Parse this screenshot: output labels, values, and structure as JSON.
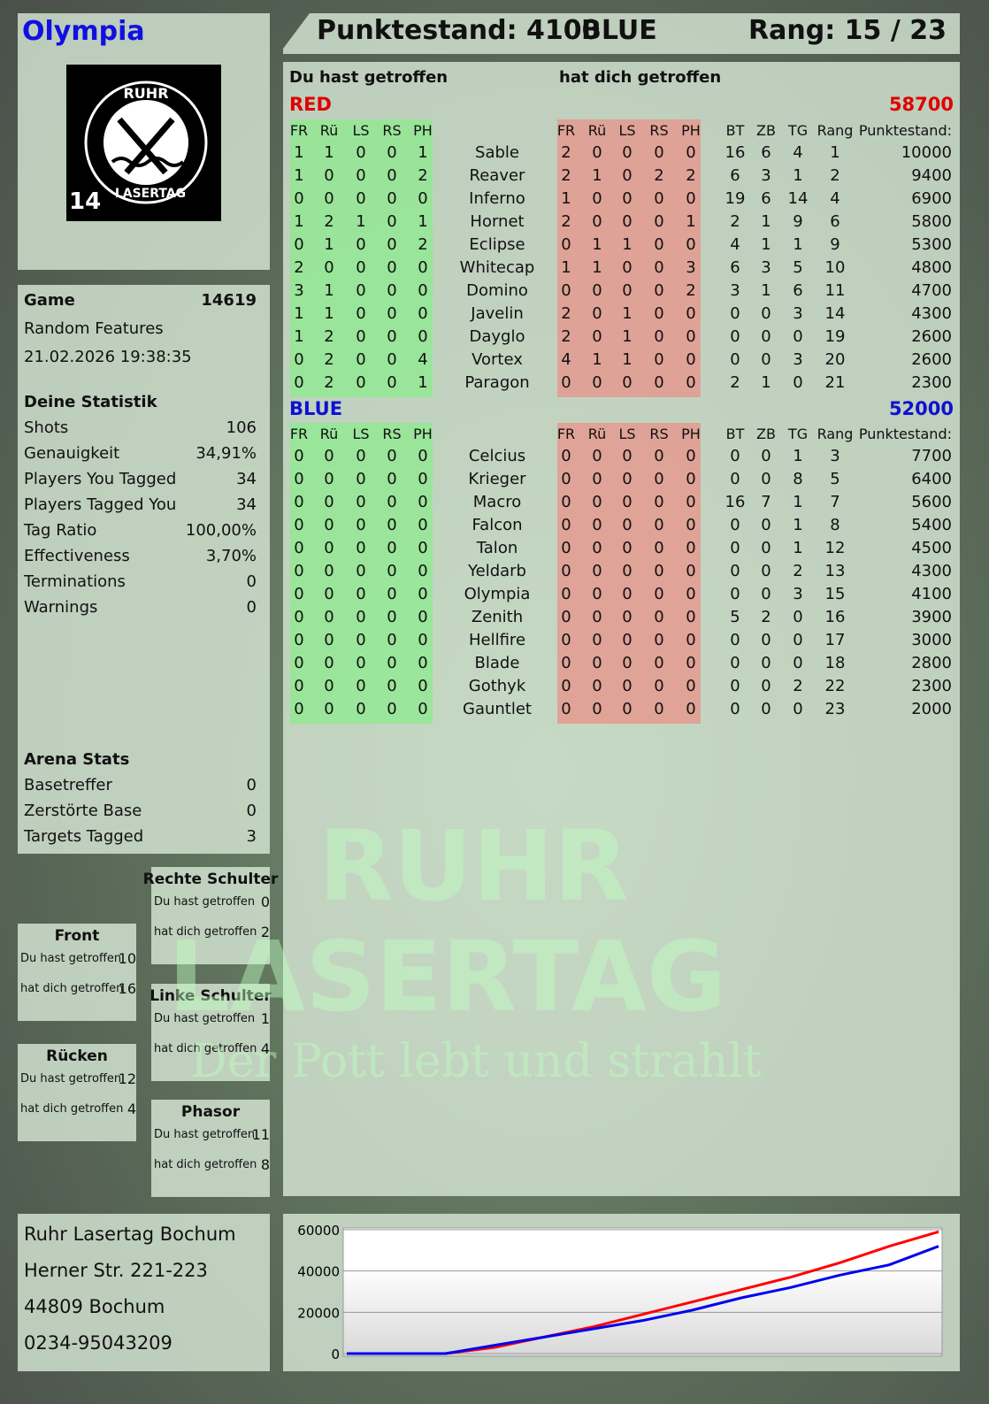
{
  "player": {
    "name": "Olympia",
    "badge_number": "14",
    "logo_text": "RUHR LASERTAG"
  },
  "header": {
    "score": "Punktestand: 4100",
    "team": "BLUE",
    "rank": "Rang: 15 / 23"
  },
  "main": {
    "you_hit_label": "Du hast getroffen",
    "hit_you_label": "hat dich getroffen",
    "columns": {
      "hit": [
        "FR",
        "Rü",
        "LS",
        "RS",
        "PH"
      ],
      "stats": [
        "BT",
        "ZB",
        "TG",
        "Rang",
        "Punktestand:"
      ]
    },
    "teams": [
      {
        "name": "RED",
        "score": "58700",
        "color": "#e00000",
        "rows": [
          {
            "you": [
              1,
              1,
              0,
              0,
              1
            ],
            "name": "Sable",
            "them": [
              2,
              0,
              0,
              0,
              0
            ],
            "stats": [
              16,
              6,
              4,
              1,
              10000
            ]
          },
          {
            "you": [
              1,
              0,
              0,
              0,
              2
            ],
            "name": "Reaver",
            "them": [
              2,
              1,
              0,
              2,
              2
            ],
            "stats": [
              6,
              3,
              1,
              2,
              9400
            ]
          },
          {
            "you": [
              0,
              0,
              0,
              0,
              0
            ],
            "name": "Inferno",
            "them": [
              1,
              0,
              0,
              0,
              0
            ],
            "stats": [
              19,
              6,
              14,
              4,
              6900
            ]
          },
          {
            "you": [
              1,
              2,
              1,
              0,
              1
            ],
            "name": "Hornet",
            "them": [
              2,
              0,
              0,
              0,
              1
            ],
            "stats": [
              2,
              1,
              9,
              6,
              5800
            ]
          },
          {
            "you": [
              0,
              1,
              0,
              0,
              2
            ],
            "name": "Eclipse",
            "them": [
              0,
              1,
              1,
              0,
              0
            ],
            "stats": [
              4,
              1,
              1,
              9,
              5300
            ]
          },
          {
            "you": [
              2,
              0,
              0,
              0,
              0
            ],
            "name": "Whitecap",
            "them": [
              1,
              1,
              0,
              0,
              3
            ],
            "stats": [
              6,
              3,
              5,
              10,
              4800
            ]
          },
          {
            "you": [
              3,
              1,
              0,
              0,
              0
            ],
            "name": "Domino",
            "them": [
              0,
              0,
              0,
              0,
              2
            ],
            "stats": [
              3,
              1,
              6,
              11,
              4700
            ]
          },
          {
            "you": [
              1,
              1,
              0,
              0,
              0
            ],
            "name": "Javelin",
            "them": [
              2,
              0,
              1,
              0,
              0
            ],
            "stats": [
              0,
              0,
              3,
              14,
              4300
            ]
          },
          {
            "you": [
              1,
              2,
              0,
              0,
              0
            ],
            "name": "Dayglo",
            "them": [
              2,
              0,
              1,
              0,
              0
            ],
            "stats": [
              0,
              0,
              0,
              19,
              2600
            ]
          },
          {
            "you": [
              0,
              2,
              0,
              0,
              4
            ],
            "name": "Vortex",
            "them": [
              4,
              1,
              1,
              0,
              0
            ],
            "stats": [
              0,
              0,
              3,
              20,
              2600
            ]
          },
          {
            "you": [
              0,
              2,
              0,
              0,
              1
            ],
            "name": "Paragon",
            "them": [
              0,
              0,
              0,
              0,
              0
            ],
            "stats": [
              2,
              1,
              0,
              21,
              2300
            ]
          }
        ]
      },
      {
        "name": "BLUE",
        "score": "52000",
        "color": "#1010d0",
        "rows": [
          {
            "you": [
              0,
              0,
              0,
              0,
              0
            ],
            "name": "Celcius",
            "them": [
              0,
              0,
              0,
              0,
              0
            ],
            "stats": [
              0,
              0,
              1,
              3,
              7700
            ]
          },
          {
            "you": [
              0,
              0,
              0,
              0,
              0
            ],
            "name": "Krieger",
            "them": [
              0,
              0,
              0,
              0,
              0
            ],
            "stats": [
              0,
              0,
              8,
              5,
              6400
            ]
          },
          {
            "you": [
              0,
              0,
              0,
              0,
              0
            ],
            "name": "Macro",
            "them": [
              0,
              0,
              0,
              0,
              0
            ],
            "stats": [
              16,
              7,
              1,
              7,
              5600
            ]
          },
          {
            "you": [
              0,
              0,
              0,
              0,
              0
            ],
            "name": "Falcon",
            "them": [
              0,
              0,
              0,
              0,
              0
            ],
            "stats": [
              0,
              0,
              1,
              8,
              5400
            ]
          },
          {
            "you": [
              0,
              0,
              0,
              0,
              0
            ],
            "name": "Talon",
            "them": [
              0,
              0,
              0,
              0,
              0
            ],
            "stats": [
              0,
              0,
              1,
              12,
              4500
            ]
          },
          {
            "you": [
              0,
              0,
              0,
              0,
              0
            ],
            "name": "Yeldarb",
            "them": [
              0,
              0,
              0,
              0,
              0
            ],
            "stats": [
              0,
              0,
              2,
              13,
              4300
            ]
          },
          {
            "you": [
              0,
              0,
              0,
              0,
              0
            ],
            "name": "Olympia",
            "them": [
              0,
              0,
              0,
              0,
              0
            ],
            "stats": [
              0,
              0,
              3,
              15,
              4100
            ]
          },
          {
            "you": [
              0,
              0,
              0,
              0,
              0
            ],
            "name": "Zenith",
            "them": [
              0,
              0,
              0,
              0,
              0
            ],
            "stats": [
              5,
              2,
              0,
              16,
              3900
            ]
          },
          {
            "you": [
              0,
              0,
              0,
              0,
              0
            ],
            "name": "Hellfire",
            "them": [
              0,
              0,
              0,
              0,
              0
            ],
            "stats": [
              0,
              0,
              0,
              17,
              3000
            ]
          },
          {
            "you": [
              0,
              0,
              0,
              0,
              0
            ],
            "name": "Blade",
            "them": [
              0,
              0,
              0,
              0,
              0
            ],
            "stats": [
              0,
              0,
              0,
              18,
              2800
            ]
          },
          {
            "you": [
              0,
              0,
              0,
              0,
              0
            ],
            "name": "Gothyk",
            "them": [
              0,
              0,
              0,
              0,
              0
            ],
            "stats": [
              0,
              0,
              2,
              22,
              2300
            ]
          },
          {
            "you": [
              0,
              0,
              0,
              0,
              0
            ],
            "name": "Gauntlet",
            "them": [
              0,
              0,
              0,
              0,
              0
            ],
            "stats": [
              0,
              0,
              0,
              23,
              2000
            ]
          }
        ]
      }
    ]
  },
  "game": {
    "label": "Game",
    "id": "14619",
    "mode": "Random Features",
    "datetime": "21.02.2026 19:38:35",
    "stats_title": "Deine Statistik",
    "stats": [
      [
        "Shots",
        "106"
      ],
      [
        "Genauigkeit",
        "34,91%"
      ],
      [
        "Players You Tagged",
        "34"
      ],
      [
        "Players Tagged You",
        "34"
      ],
      [
        "Tag Ratio",
        "100,00%"
      ],
      [
        "Effectiveness",
        "3,70%"
      ],
      [
        "Terminations",
        "0"
      ],
      [
        "Warnings",
        "0"
      ]
    ],
    "arena_title": "Arena Stats",
    "arena": [
      [
        "Basetreffer",
        "0"
      ],
      [
        "Zerstörte Base",
        "0"
      ],
      [
        "Targets Tagged",
        "3"
      ]
    ]
  },
  "zones": [
    {
      "title": "Rechte Schulter",
      "you": "0",
      "them": "2"
    },
    {
      "title": "Front",
      "you": "10",
      "them": "16"
    },
    {
      "title": "Linke Schulter",
      "you": "1",
      "them": "4"
    },
    {
      "title": "Rücken",
      "you": "12",
      "them": "4"
    },
    {
      "title": "Phasor",
      "you": "11",
      "them": "8"
    }
  ],
  "zone_labels": {
    "you": "Du hast getroffen",
    "them": "hat dich getroffen"
  },
  "address": [
    "Ruhr Lasertag Bochum",
    "Herner Str. 221-223",
    "44809 Bochum",
    "0234-95043209"
  ],
  "watermark": {
    "line1": "RUHR",
    "line2": "LASERTAG",
    "line3": "Der Pott lebt und strahlt"
  },
  "chart_data": {
    "type": "line",
    "ylim": [
      0,
      60000
    ],
    "yticks": [
      "0",
      "20000",
      "40000",
      "60000"
    ],
    "grid": true,
    "series": [
      {
        "color": "#ff0000",
        "values": [
          0,
          0,
          0,
          3000,
          8000,
          13000,
          19000,
          25000,
          31000,
          37000,
          44000,
          52000,
          59000
        ]
      },
      {
        "color": "#0000ee",
        "values": [
          0,
          0,
          0,
          4000,
          8000,
          12000,
          16000,
          21000,
          27000,
          32000,
          38000,
          43000,
          52000
        ]
      }
    ]
  }
}
